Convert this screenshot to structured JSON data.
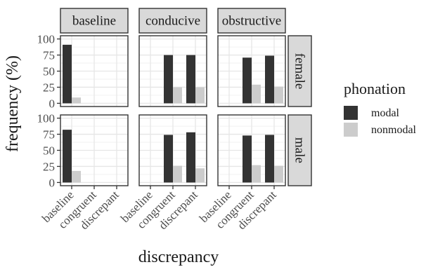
{
  "chart_data": {
    "type": "bar",
    "facet_columns": [
      "baseline",
      "conducive",
      "obstructive"
    ],
    "facet_rows": [
      "female",
      "male"
    ],
    "categories": [
      "baseline",
      "congruent",
      "discrepant"
    ],
    "xlabel": "discrepancy",
    "ylabel": "frequency (%)",
    "ylim": [
      0,
      100
    ],
    "y_ticks": [
      0,
      25,
      50,
      75,
      100
    ],
    "grid": true,
    "legend": {
      "title": "phonation",
      "placement": "right",
      "entries": [
        {
          "name": "modal",
          "color": "#333333"
        },
        {
          "name": "nonmodal",
          "color": "#cccccc"
        }
      ]
    },
    "panels": [
      {
        "column": "baseline",
        "row": "female",
        "data": [
          {
            "category": "baseline",
            "modal": 91,
            "nonmodal": 9
          }
        ]
      },
      {
        "column": "conducive",
        "row": "female",
        "data": [
          {
            "category": "congruent",
            "modal": 75,
            "nonmodal": 25
          },
          {
            "category": "discrepant",
            "modal": 75,
            "nonmodal": 25
          }
        ]
      },
      {
        "column": "obstructive",
        "row": "female",
        "data": [
          {
            "category": "congruent",
            "modal": 71,
            "nonmodal": 29
          },
          {
            "category": "discrepant",
            "modal": 74,
            "nonmodal": 26
          }
        ]
      },
      {
        "column": "baseline",
        "row": "male",
        "data": [
          {
            "category": "baseline",
            "modal": 82,
            "nonmodal": 18
          }
        ]
      },
      {
        "column": "conducive",
        "row": "male",
        "data": [
          {
            "category": "congruent",
            "modal": 74,
            "nonmodal": 26
          },
          {
            "category": "discrepant",
            "modal": 78,
            "nonmodal": 22
          }
        ]
      },
      {
        "column": "obstructive",
        "row": "male",
        "data": [
          {
            "category": "congruent",
            "modal": 73,
            "nonmodal": 27
          },
          {
            "category": "discrepant",
            "modal": 74,
            "nonmodal": 26
          }
        ]
      }
    ]
  }
}
